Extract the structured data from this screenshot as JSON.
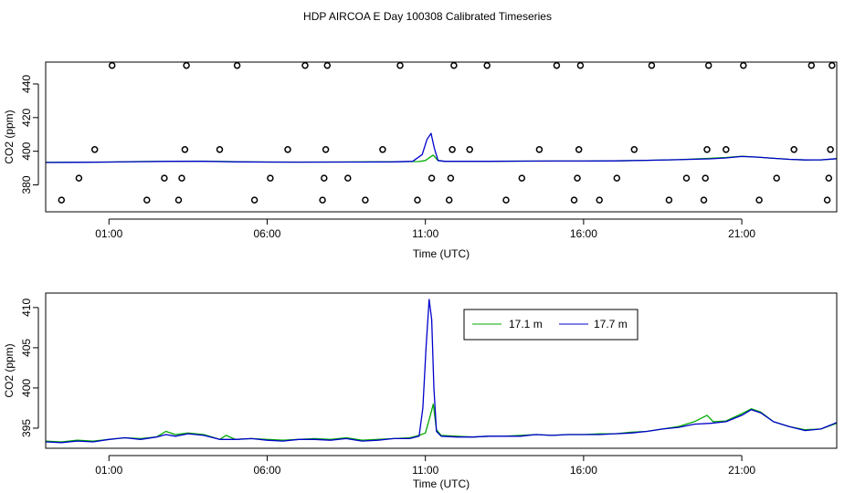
{
  "title": "HDP AIRCOA E  Day 100308  Calibrated Timeseries",
  "colors": {
    "green": "#00aa00",
    "blue": "#0000cc",
    "frame": "#000000",
    "background": "#ffffff"
  },
  "chart_data": [
    {
      "type": "line",
      "xlabel": "Time (UTC)",
      "ylabel": "CO2 (ppm)",
      "x_ticks": [
        "01:00",
        "06:00",
        "11:00",
        "16:00",
        "21:00"
      ],
      "x_tick_hours": [
        1,
        6,
        11,
        16,
        21
      ],
      "xlim": [
        -1.0,
        24.0
      ],
      "ylim": [
        364,
        453
      ],
      "y_ticks": [
        380,
        400,
        420,
        440
      ],
      "grid": false,
      "legend": "none",
      "series": [
        {
          "color": "#00aa00",
          "x": [
            -1,
            0,
            1,
            2,
            3,
            4,
            5,
            6,
            7,
            8,
            9,
            10,
            10.8,
            11.0,
            11.15,
            11.25,
            11.4,
            11.6,
            12,
            13,
            14,
            15,
            16,
            17,
            18,
            19,
            20,
            20.5,
            21,
            21.5,
            22,
            22.5,
            23,
            23.5,
            24
          ],
          "y": [
            393.4,
            393.5,
            393.6,
            393.9,
            394.0,
            394.1,
            393.8,
            393.6,
            393.6,
            393.6,
            393.7,
            393.8,
            393.9,
            394.5,
            396.5,
            397.7,
            394.5,
            394.0,
            394.0,
            394.0,
            394.1,
            394.2,
            394.2,
            394.3,
            394.6,
            395.0,
            395.8,
            396.3,
            397.0,
            396.5,
            395.8,
            395.2,
            394.8,
            394.9,
            395.6
          ]
        },
        {
          "color": "#0000cc",
          "x": [
            -1,
            0,
            1,
            2,
            3,
            4,
            5,
            6,
            7,
            8,
            9,
            10,
            10.6,
            10.9,
            11.05,
            11.18,
            11.28,
            11.4,
            11.6,
            12,
            13,
            14,
            15,
            16,
            17,
            18,
            19,
            20,
            20.5,
            21,
            21.5,
            22,
            22.5,
            23,
            23.5,
            24
          ],
          "y": [
            393.3,
            393.4,
            393.6,
            393.8,
            394.0,
            394.0,
            393.7,
            393.6,
            393.5,
            393.6,
            393.6,
            393.7,
            394.0,
            398.0,
            407.0,
            410.6,
            402.0,
            394.5,
            394.0,
            394.0,
            394.0,
            394.1,
            394.2,
            394.2,
            394.3,
            394.6,
            395.0,
            395.5,
            396.0,
            396.9,
            396.5,
            395.8,
            395.2,
            394.8,
            394.9,
            395.6
          ]
        }
      ],
      "scatter_points": {
        "x": [
          -0.5,
          0.05,
          0.55,
          1.1,
          2.2,
          2.75,
          3.2,
          3.3,
          3.4,
          3.45,
          4.5,
          5.05,
          5.6,
          6.1,
          6.65,
          7.2,
          7.75,
          7.8,
          7.85,
          7.9,
          8.55,
          9.1,
          9.65,
          10.2,
          10.75,
          11.2,
          11.75,
          11.8,
          11.85,
          11.9,
          12.4,
          12.95,
          13.55,
          14.05,
          14.6,
          15.15,
          15.7,
          15.8,
          15.85,
          15.9,
          16.5,
          17.05,
          17.6,
          18.15,
          18.7,
          19.25,
          19.8,
          19.85,
          19.9,
          19.95,
          20.5,
          21.05,
          21.55,
          22.1,
          22.65,
          23.2,
          23.7,
          23.75,
          23.8,
          23.85
        ],
        "y": [
          371,
          384,
          401,
          451,
          371,
          384,
          371,
          384,
          401,
          451,
          401,
          451,
          371,
          384,
          401,
          451,
          371,
          384,
          401,
          451,
          384,
          371,
          401,
          451,
          371,
          384,
          371,
          384,
          401,
          451,
          401,
          451,
          371,
          384,
          401,
          451,
          371,
          384,
          401,
          451,
          371,
          384,
          401,
          451,
          371,
          384,
          371,
          384,
          401,
          451,
          401,
          451,
          371,
          384,
          401,
          451,
          371,
          384,
          401,
          451
        ]
      }
    },
    {
      "type": "line",
      "xlabel": "Time (UTC)",
      "ylabel": "CO2 (ppm)",
      "x_ticks": [
        "01:00",
        "06:00",
        "11:00",
        "16:00",
        "21:00"
      ],
      "x_tick_hours": [
        1,
        6,
        11,
        16,
        21
      ],
      "xlim": [
        -1.0,
        24.0
      ],
      "ylim": [
        392.5,
        411.8
      ],
      "y_ticks": [
        395,
        400,
        405,
        410
      ],
      "grid": false,
      "legend": "top-right",
      "series": [
        {
          "name": "17.1 m",
          "color": "#00aa00",
          "x": [
            -1,
            -0.5,
            0,
            0.5,
            1,
            1.5,
            2,
            2.5,
            2.8,
            3.1,
            3.5,
            4,
            4.5,
            4.7,
            5,
            5.5,
            6,
            6.5,
            7,
            7.5,
            8,
            8.5,
            9,
            9.5,
            10,
            10.5,
            10.8,
            11.0,
            11.15,
            11.25,
            11.35,
            11.5,
            12,
            12.5,
            13,
            13.5,
            14,
            14.5,
            15,
            15.5,
            16,
            16.5,
            17,
            17.5,
            18,
            18.5,
            19,
            19.5,
            19.9,
            20.1,
            20.5,
            21,
            21.3,
            21.6,
            22,
            22.5,
            23,
            23.5,
            24
          ],
          "y": [
            393.4,
            393.3,
            393.5,
            393.4,
            393.6,
            393.8,
            393.7,
            393.9,
            394.6,
            394.2,
            394.4,
            394.2,
            393.6,
            394.1,
            393.6,
            393.7,
            393.6,
            393.5,
            393.6,
            393.7,
            393.6,
            393.8,
            393.5,
            393.6,
            393.7,
            393.8,
            394.1,
            394.4,
            396.5,
            398.0,
            394.8,
            394.1,
            394.0,
            393.9,
            394.0,
            394.0,
            394.1,
            394.2,
            394.1,
            394.2,
            394.2,
            394.3,
            394.3,
            394.5,
            394.6,
            394.9,
            395.2,
            395.8,
            396.6,
            395.8,
            395.9,
            396.8,
            397.4,
            397.0,
            395.8,
            395.2,
            394.8,
            394.9,
            395.6
          ]
        },
        {
          "name": "17.7 m",
          "color": "#0000cc",
          "x": [
            -1,
            -0.5,
            0,
            0.5,
            1,
            1.5,
            2,
            2.5,
            2.8,
            3.1,
            3.5,
            4,
            4.5,
            5,
            5.5,
            6,
            6.5,
            7,
            7.5,
            8,
            8.5,
            9,
            9.5,
            10,
            10.5,
            10.8,
            10.92,
            11.02,
            11.12,
            11.2,
            11.27,
            11.35,
            11.5,
            12,
            12.5,
            13,
            13.5,
            14,
            14.5,
            15,
            15.5,
            16,
            16.5,
            17,
            17.5,
            18,
            18.5,
            19,
            19.5,
            20,
            20.5,
            21,
            21.3,
            21.6,
            22,
            22.5,
            23,
            23.5,
            24
          ],
          "y": [
            393.3,
            393.2,
            393.4,
            393.3,
            393.6,
            393.8,
            393.6,
            393.9,
            394.2,
            394.0,
            394.3,
            394.1,
            393.6,
            393.6,
            393.7,
            393.5,
            393.4,
            393.6,
            393.6,
            393.5,
            393.7,
            393.4,
            393.5,
            393.7,
            393.7,
            394.0,
            397.5,
            405.0,
            411.0,
            408.5,
            400.0,
            394.6,
            394.0,
            393.9,
            393.9,
            394.0,
            394.0,
            394.0,
            394.2,
            394.1,
            394.2,
            394.2,
            394.2,
            394.3,
            394.4,
            394.6,
            394.9,
            395.1,
            395.5,
            395.6,
            395.8,
            396.6,
            397.3,
            396.9,
            395.8,
            395.2,
            394.7,
            394.9,
            395.7
          ]
        }
      ]
    }
  ]
}
